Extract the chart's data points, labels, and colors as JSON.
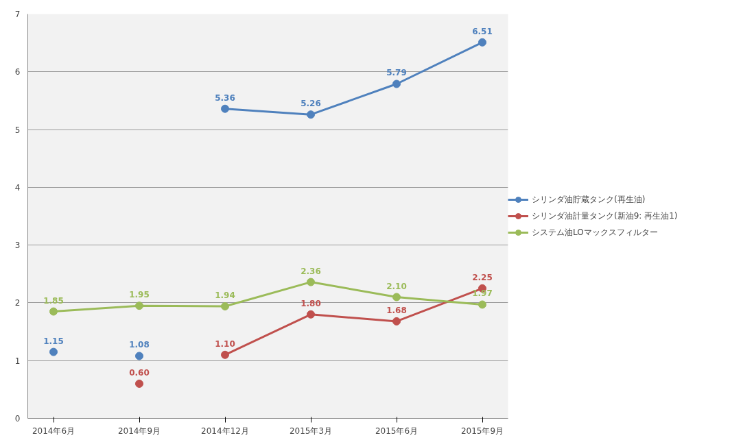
{
  "chart_data": {
    "type": "line",
    "categories": [
      "2014年6月",
      "2014年9月",
      "2014年12月",
      "2015年3月",
      "2015年6月",
      "2015年9月"
    ],
    "series": [
      {
        "name": "シリンダ油貯蔵タンク(再生油)",
        "color": "#4f81bd",
        "values": [
          null,
          null,
          5.36,
          5.26,
          5.79,
          6.51
        ],
        "value_labels": [
          null,
          null,
          "5.36",
          "5.26",
          "5.79",
          "6.51"
        ]
      },
      {
        "name": "シリンダ油計量タンク(新油9: 再生油1)",
        "color": "#c0504d",
        "values": [
          null,
          null,
          1.1,
          1.8,
          1.68,
          2.25
        ],
        "value_labels": [
          null,
          null,
          "1.10",
          "1.80",
          "1.68",
          "2.25"
        ]
      },
      {
        "name": "システム油LOマックスフィルター",
        "color": "#9bbb59",
        "values": [
          1.85,
          1.95,
          1.94,
          2.36,
          2.1,
          1.97
        ],
        "value_labels": [
          "1.85",
          "1.95",
          "1.94",
          "2.36",
          "2.10",
          "1.97"
        ]
      },
      {
        "type": "scatter",
        "color": "#4f81bd",
        "values": [
          1.15,
          1.08,
          null,
          null,
          null,
          null
        ],
        "value_labels": [
          "1.15",
          "1.08",
          null,
          null,
          null,
          null
        ]
      },
      {
        "type": "scatter",
        "color": "#c0504d",
        "values": [
          null,
          0.6,
          null,
          null,
          null,
          null
        ],
        "value_labels": [
          null,
          "0.60",
          null,
          null,
          null,
          null
        ]
      }
    ],
    "ylim": [
      0,
      7
    ],
    "yticks": [
      0,
      1,
      2,
      3,
      4,
      5,
      6,
      7
    ],
    "grid": "y",
    "legend": "right",
    "marker": "circle",
    "line_style": "solid"
  }
}
